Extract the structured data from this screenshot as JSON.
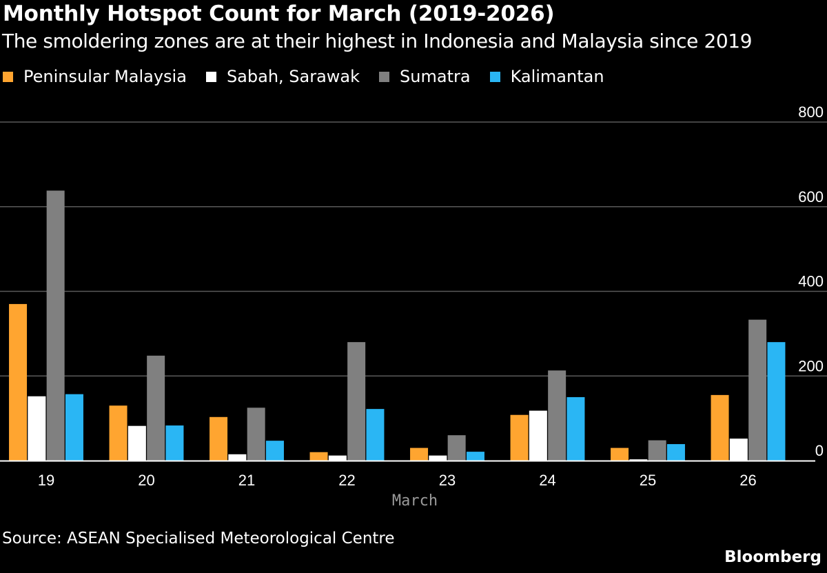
{
  "chart_data": {
    "type": "bar",
    "title": "Monthly Hotspot Count for March (2019-2026)",
    "subtitle": "The smoldering zones are at their highest in Indonesia and Malaysia since 2019",
    "xlabel": "March",
    "ylabel": "",
    "ylim": [
      0,
      800
    ],
    "yticks": [
      "0",
      "200",
      "400",
      "600",
      "800"
    ],
    "y_axis_side": "right",
    "grid": true,
    "legend_position": "top-left",
    "categories": [
      "19",
      "20",
      "21",
      "22",
      "23",
      "24",
      "25",
      "26"
    ],
    "series": [
      {
        "name": "Peninsular Malaysia",
        "color": "#ffa530",
        "values": [
          370,
          130,
          103,
          20,
          30,
          108,
          30,
          155
        ]
      },
      {
        "name": "Sabah, Sarawak",
        "color": "#ffffff",
        "values": [
          152,
          82,
          15,
          12,
          12,
          118,
          3,
          52
        ]
      },
      {
        "name": "Sumatra",
        "color": "#808080",
        "values": [
          638,
          248,
          125,
          280,
          60,
          213,
          48,
          333
        ]
      },
      {
        "name": "Kalimantan",
        "color": "#2ab6f4",
        "values": [
          157,
          83,
          47,
          122,
          21,
          150,
          39,
          280
        ]
      }
    ]
  },
  "footer": {
    "source": "Source: ASEAN Specialised Meteorological Centre",
    "brand": "Bloomberg"
  }
}
